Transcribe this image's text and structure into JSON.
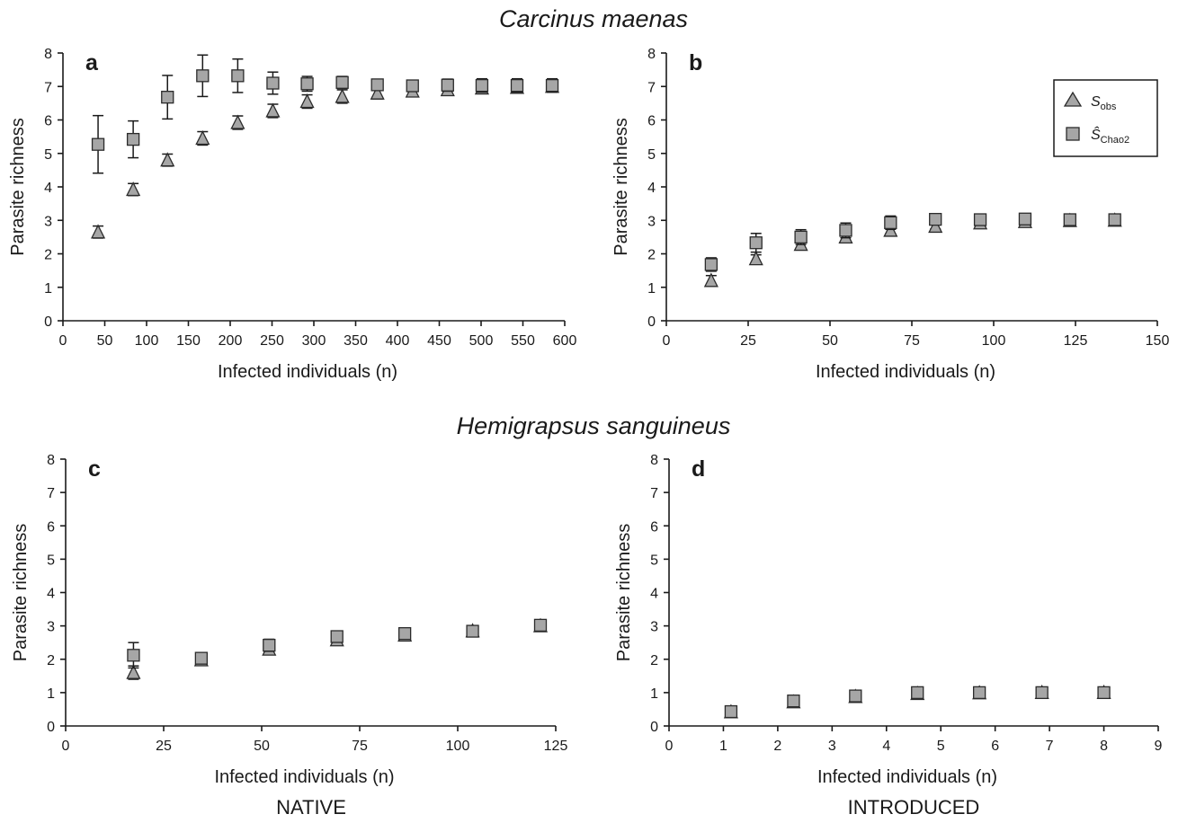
{
  "titles": {
    "top": "Carcinus maenas",
    "bottom": "Hemigrapsus sanguineus"
  },
  "labels": {
    "native": "NATIVE",
    "introduced": "INTRODUCED"
  },
  "legend": {
    "series_1": {
      "main": "S",
      "sub": "obs"
    },
    "series_2": {
      "main": "Ŝ",
      "sub": "Chao2"
    }
  },
  "colors": {
    "marker_fill": "#a6a6a6",
    "marker_stroke": "#2b2b2b",
    "axis": "#1a1a1a"
  },
  "chart_data": [
    {
      "panel": "a",
      "type": "scatter",
      "xlabel": "Infected individuals (n)",
      "ylabel": "Parasite richness",
      "xlim": [
        0,
        600
      ],
      "ylim": [
        0,
        8
      ],
      "xticks": [
        0,
        50,
        100,
        150,
        200,
        250,
        300,
        350,
        400,
        450,
        500,
        550,
        600
      ],
      "yticks": [
        0,
        1,
        2,
        3,
        4,
        5,
        6,
        7,
        8
      ],
      "series": [
        {
          "name": "S_obs",
          "marker": "triangle",
          "x": [
            42,
            84,
            125,
            167,
            209,
            251,
            292,
            334,
            376,
            418,
            460,
            501,
            543,
            585
          ],
          "y": [
            2.65,
            3.92,
            4.8,
            5.45,
            5.92,
            6.27,
            6.55,
            6.7,
            6.8,
            6.86,
            6.9,
            6.95,
            6.97,
            7.0
          ],
          "err": [
            0.18,
            0.18,
            0.18,
            0.2,
            0.2,
            0.2,
            0.2,
            0.2,
            0.17,
            0.15,
            0.14,
            0.12,
            0.1,
            0.08
          ]
        },
        {
          "name": "S_Chao2",
          "marker": "square",
          "x": [
            42,
            84,
            125,
            167,
            209,
            251,
            292,
            334,
            376,
            418,
            460,
            501,
            543,
            585
          ],
          "y": [
            5.27,
            5.42,
            6.68,
            7.32,
            7.32,
            7.1,
            7.08,
            7.12,
            7.05,
            7.02,
            7.04,
            7.03,
            7.03,
            7.03
          ],
          "err": [
            0.86,
            0.55,
            0.65,
            0.62,
            0.5,
            0.33,
            0.22,
            0.18,
            0.15,
            0.14,
            0.18,
            0.2,
            0.2,
            0.2
          ]
        }
      ]
    },
    {
      "panel": "b",
      "type": "scatter",
      "xlabel": "Infected individuals (n)",
      "ylabel": "Parasite richness",
      "xlim": [
        0,
        150
      ],
      "ylim": [
        0,
        8
      ],
      "xticks": [
        0,
        25,
        50,
        75,
        100,
        125,
        150
      ],
      "yticks": [
        0,
        1,
        2,
        3,
        4,
        5,
        6,
        7,
        8
      ],
      "series": [
        {
          "name": "S_obs",
          "marker": "triangle",
          "x": [
            13.7,
            27.4,
            41.1,
            54.8,
            68.5,
            82.2,
            95.9,
            109.6,
            123.3,
            137.0
          ],
          "y": [
            1.2,
            1.85,
            2.28,
            2.5,
            2.7,
            2.82,
            2.92,
            2.96,
            2.99,
            3.0
          ],
          "err": [
            0.15,
            0.12,
            0.12,
            0.1,
            0.1,
            0.08,
            0.07,
            0.05,
            0.04,
            0.03
          ]
        },
        {
          "name": "S_Chao2",
          "marker": "square",
          "x": [
            13.7,
            27.4,
            41.1,
            54.8,
            68.5,
            82.2,
            95.9,
            109.6,
            123.3,
            137.0
          ],
          "y": [
            1.68,
            2.33,
            2.5,
            2.7,
            2.93,
            3.03,
            3.02,
            3.04,
            3.02,
            3.02
          ],
          "err": [
            0.2,
            0.28,
            0.22,
            0.22,
            0.2,
            0.15,
            0.12,
            0.1,
            0.08,
            0.06
          ]
        }
      ]
    },
    {
      "panel": "c",
      "type": "scatter",
      "xlabel": "Infected individuals (n)",
      "ylabel": "Parasite richness",
      "xlim": [
        0,
        125
      ],
      "ylim": [
        0,
        8
      ],
      "xticks": [
        0,
        25,
        50,
        75,
        100,
        125
      ],
      "yticks": [
        0,
        1,
        2,
        3,
        4,
        5,
        6,
        7,
        8
      ],
      "series": [
        {
          "name": "S_obs",
          "marker": "triangle",
          "x": [
            17.3,
            34.6,
            51.9,
            69.2,
            86.5,
            103.8,
            121.1
          ],
          "y": [
            1.6,
            1.98,
            2.3,
            2.58,
            2.72,
            2.85,
            3.0
          ],
          "err": [
            0.2,
            0.07,
            0.12,
            0.1,
            0.08,
            0.05,
            0.03
          ]
        },
        {
          "name": "S_Chao2",
          "marker": "square",
          "x": [
            17.3,
            34.6,
            51.9,
            69.2,
            86.5,
            103.8,
            121.1
          ],
          "y": [
            2.12,
            2.03,
            2.42,
            2.68,
            2.77,
            2.84,
            3.02
          ],
          "err": [
            0.38,
            0.1,
            0.18,
            0.15,
            0.12,
            0.07,
            0.04
          ]
        }
      ]
    },
    {
      "panel": "d",
      "type": "scatter",
      "xlabel": "Infected individuals (n)",
      "ylabel": "Parasite richness",
      "xlim": [
        0,
        9
      ],
      "ylim": [
        0,
        8
      ],
      "xticks": [
        0,
        1,
        2,
        3,
        4,
        5,
        6,
        7,
        8,
        9
      ],
      "yticks": [
        0,
        1,
        2,
        3,
        4,
        5,
        6,
        7,
        8
      ],
      "series": [
        {
          "name": "S_obs",
          "marker": "triangle",
          "x": [
            1.14,
            2.29,
            3.43,
            4.57,
            5.71,
            6.86,
            8.0
          ],
          "y": [
            0.42,
            0.72,
            0.88,
            0.97,
            0.99,
            1.0,
            1.0
          ],
          "err": [
            0.05,
            0.06,
            0.06,
            0.05,
            0.03,
            0.02,
            0.0
          ]
        },
        {
          "name": "S_Chao2",
          "marker": "square",
          "x": [
            1.14,
            2.29,
            3.43,
            4.57,
            5.71,
            6.86,
            8.0
          ],
          "y": [
            0.43,
            0.75,
            0.9,
            1.0,
            1.0,
            1.0,
            1.0
          ],
          "err": [
            0.06,
            0.08,
            0.1,
            0.12,
            0.08,
            0.06,
            0.04
          ]
        }
      ]
    }
  ]
}
